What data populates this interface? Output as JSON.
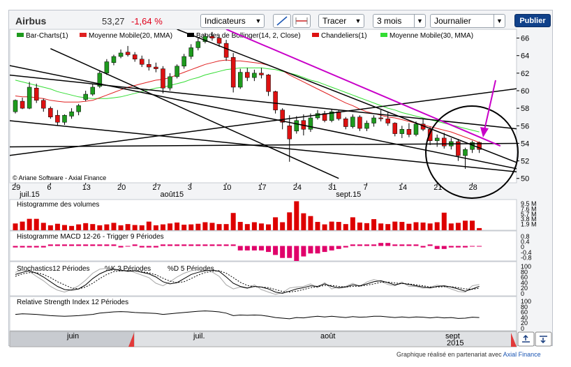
{
  "header": {
    "ticker_name": "Airbus",
    "price": "53,27",
    "change": "-1,64 %",
    "indicators_label": "Indicateurs",
    "draw_label": "Tracer",
    "period_value": "3 mois",
    "interval_value": "Journalier",
    "publish_label": "Publier"
  },
  "footer": {
    "credit": "Graphique réalisé en partenariat avec",
    "partner": "Axial Finance"
  },
  "colors": {
    "up": "#1e9a1e",
    "down": "#dd1111",
    "ma20": "#e02020",
    "ma30": "#33dd33",
    "trend": "#000000",
    "magenta": "#c800c8",
    "volume": "#dd0000",
    "macd": "#e0006a"
  },
  "chart_data": [
    {
      "type": "candlestick",
      "name": "price",
      "legend": [
        "Bar-Charts(1)",
        "Moyenne Mobile(20, MMA)",
        "Bandes de Bollinger(14, 2, Close)",
        "Chandeliers(1)",
        "Moyenne Mobile(30, MMA)"
      ],
      "watermark": "© Ariane Software - Axial Finance",
      "y_ticks": [
        50,
        52,
        54,
        56,
        58,
        60,
        62,
        64,
        66
      ],
      "ylim": [
        49.5,
        67
      ],
      "x_tick_labels": [
        "29",
        "6",
        "13",
        "20",
        "27",
        "3",
        "10",
        "17",
        "24",
        "31",
        "7",
        "14",
        "21",
        "28"
      ],
      "x_tick_index": [
        0,
        5,
        10,
        15,
        20,
        25,
        30,
        35,
        40,
        45,
        50,
        55,
        60,
        65
      ],
      "month_labels": [
        {
          "label": "juil.15",
          "index": 1
        },
        {
          "label": "août15",
          "index": 21
        },
        {
          "label": "sept.15",
          "index": 46
        }
      ],
      "candles": [
        [
          57.6,
          59.0,
          57.4,
          58.9
        ],
        [
          58.8,
          59.2,
          57.9,
          58.0
        ],
        [
          58.0,
          61.0,
          57.9,
          60.4
        ],
        [
          60.3,
          60.8,
          58.6,
          58.9
        ],
        [
          58.9,
          59.1,
          57.6,
          58.0
        ],
        [
          58.0,
          58.2,
          56.8,
          57.0
        ],
        [
          57.2,
          57.8,
          56.0,
          56.4
        ],
        [
          56.4,
          57.3,
          56.1,
          57.2
        ],
        [
          57.1,
          58.0,
          56.8,
          57.6
        ],
        [
          57.6,
          58.5,
          57.2,
          58.3
        ],
        [
          59.0,
          60.0,
          58.8,
          59.6
        ],
        [
          59.6,
          60.8,
          59.4,
          60.4
        ],
        [
          60.5,
          62.3,
          60.3,
          62.0
        ],
        [
          62.0,
          63.6,
          61.8,
          63.3
        ],
        [
          63.2,
          64.1,
          62.9,
          63.9
        ],
        [
          63.9,
          64.7,
          63.7,
          64.3
        ],
        [
          64.4,
          65.1,
          63.9,
          64.1
        ],
        [
          64.1,
          64.4,
          63.3,
          63.6
        ],
        [
          63.6,
          64.0,
          62.7,
          63.0
        ],
        [
          63.0,
          63.6,
          62.3,
          62.7
        ],
        [
          62.7,
          63.2,
          62.1,
          62.5
        ],
        [
          62.5,
          62.8,
          59.7,
          60.3
        ],
        [
          60.3,
          62.0,
          60.0,
          61.6
        ],
        [
          61.6,
          63.0,
          61.4,
          62.8
        ],
        [
          62.8,
          64.2,
          62.5,
          63.9
        ],
        [
          63.9,
          65.3,
          63.6,
          64.9
        ],
        [
          64.9,
          66.0,
          64.6,
          65.6
        ],
        [
          65.6,
          66.6,
          65.4,
          66.2
        ],
        [
          66.2,
          66.7,
          65.7,
          66.0
        ],
        [
          66.0,
          66.4,
          65.0,
          65.4
        ],
        [
          65.4,
          65.8,
          63.4,
          63.8
        ],
        [
          63.8,
          64.3,
          59.8,
          60.4
        ],
        [
          60.4,
          62.5,
          60.2,
          62.1
        ],
        [
          62.1,
          62.6,
          61.1,
          61.5
        ],
        [
          61.5,
          62.4,
          61.1,
          62.0
        ],
        [
          62.0,
          62.6,
          61.4,
          61.8
        ],
        [
          61.8,
          61.9,
          59.4,
          59.9
        ],
        [
          59.9,
          60.0,
          57.4,
          57.8
        ],
        [
          57.8,
          58.0,
          55.6,
          56.4
        ],
        [
          56.0,
          57.2,
          51.9,
          54.5
        ],
        [
          55.4,
          57.1,
          55.1,
          56.6
        ],
        [
          56.6,
          57.3,
          54.9,
          55.6
        ],
        [
          55.6,
          57.4,
          55.3,
          56.9
        ],
        [
          56.9,
          57.8,
          56.7,
          57.4
        ],
        [
          57.4,
          57.7,
          56.4,
          56.6
        ],
        [
          56.6,
          57.9,
          56.4,
          57.6
        ],
        [
          57.6,
          57.8,
          56.6,
          56.8
        ],
        [
          56.8,
          57.0,
          55.6,
          55.9
        ],
        [
          55.9,
          57.3,
          55.7,
          57.0
        ],
        [
          57.0,
          57.2,
          55.4,
          55.7
        ],
        [
          55.7,
          56.6,
          55.4,
          56.3
        ],
        [
          56.3,
          57.2,
          55.9,
          56.9
        ],
        [
          56.9,
          57.8,
          56.5,
          56.8
        ],
        [
          56.8,
          57.6,
          56.0,
          56.3
        ],
        [
          56.3,
          56.4,
          54.8,
          55.1
        ],
        [
          55.1,
          56.0,
          54.6,
          55.6
        ],
        [
          55.6,
          56.3,
          54.7,
          55.0
        ],
        [
          55.0,
          56.5,
          54.8,
          56.2
        ],
        [
          56.2,
          56.8,
          55.4,
          55.6
        ],
        [
          55.6,
          55.9,
          53.8,
          54.3
        ],
        [
          54.3,
          55.0,
          53.6,
          54.6
        ],
        [
          54.6,
          55.2,
          53.4,
          53.7
        ],
        [
          53.7,
          54.6,
          53.3,
          54.2
        ],
        [
          54.2,
          54.5,
          52.0,
          52.6
        ],
        [
          52.6,
          53.5,
          51.1,
          53.3
        ],
        [
          53.3,
          54.3,
          52.9,
          54.1
        ],
        [
          54.1,
          54.2,
          52.9,
          53.3
        ]
      ],
      "ma20": [
        59.4,
        59.3,
        59.3,
        59.2,
        59.1,
        58.9,
        58.8,
        58.7,
        58.7,
        58.7,
        58.8,
        58.9,
        59.2,
        59.5,
        59.8,
        60.1,
        60.4,
        60.6,
        60.8,
        61.0,
        61.2,
        61.3,
        61.5,
        61.8,
        62.1,
        62.4,
        62.7,
        63.0,
        63.2,
        63.4,
        63.5,
        63.4,
        63.4,
        63.3,
        63.2,
        63.1,
        62.9,
        62.6,
        62.3,
        61.8,
        61.4,
        61.0,
        60.6,
        60.2,
        59.8,
        59.4,
        59.0,
        58.6,
        58.3,
        57.9,
        57.6,
        57.4,
        57.2,
        57.0,
        56.9,
        56.7,
        56.5,
        56.3,
        56.1,
        55.9,
        55.7,
        55.5,
        55.3,
        55.0,
        54.7,
        54.4,
        54.1
      ],
      "ma30": [
        61.2,
        61.0,
        60.8,
        60.6,
        60.4,
        60.2,
        59.9,
        59.7,
        59.5,
        59.3,
        59.2,
        59.1,
        59.1,
        59.1,
        59.2,
        59.3,
        59.5,
        59.7,
        59.9,
        60.1,
        60.3,
        60.4,
        60.6,
        60.8,
        61.0,
        61.3,
        61.5,
        61.8,
        62.0,
        62.2,
        62.4,
        62.5,
        62.6,
        62.6,
        62.6,
        62.6,
        62.5,
        62.4,
        62.2,
        62.0,
        61.8,
        61.5,
        61.2,
        61.0,
        60.7,
        60.4,
        60.1,
        59.8,
        59.5,
        59.2,
        58.9,
        58.6,
        58.3,
        58.0,
        57.8,
        57.5,
        57.3,
        57.1,
        56.9,
        56.7,
        56.5,
        56.3,
        56.1,
        55.9,
        55.7,
        55.5,
        55.3
      ],
      "trendlines": [
        {
          "from": [
            -1,
            61.8
          ],
          "to": [
            72,
            55.6
          ],
          "color": "trend"
        },
        {
          "from": [
            -1,
            62.9
          ],
          "to": [
            72,
            51.0
          ],
          "color": "trend"
        },
        {
          "from": [
            -1,
            56.6
          ],
          "to": [
            72,
            50.7
          ],
          "color": "trend"
        },
        {
          "from": [
            -1,
            53.6
          ],
          "to": [
            72,
            54.0
          ],
          "color": "trend"
        },
        {
          "from": [
            -1,
            52.6
          ],
          "to": [
            72,
            60.3
          ],
          "color": "trend"
        },
        {
          "from": [
            5,
            64.8
          ],
          "to": [
            46,
            50.0
          ],
          "color": "trend"
        },
        {
          "from": [
            23,
            67.0
          ],
          "to": [
            72,
            51.6
          ],
          "color": "trend"
        },
        {
          "from": [
            30,
            67.0
          ],
          "to": [
            69,
            53.7
          ],
          "color": "magenta"
        }
      ]
    },
    {
      "type": "bar",
      "name": "volume",
      "title": "Histogramme des volumes",
      "y_ticks": [
        "9.5 M",
        "7.6 M",
        "5.7 M",
        "3.8 M",
        "1.9 M"
      ],
      "ylim": [
        0,
        9.5
      ],
      "values": [
        2.2,
        2.8,
        3.7,
        3.7,
        2.4,
        1.6,
        2.1,
        1.7,
        1.4,
        1.9,
        2.3,
        2.0,
        1.6,
        1.9,
        2.4,
        1.6,
        2.0,
        1.7,
        1.6,
        2.8,
        1.6,
        1.9,
        2.2,
        2.5,
        1.8,
        1.9,
        2.1,
        2.6,
        2.4,
        2.0,
        2.0,
        5.6,
        2.7,
        2.0,
        2.6,
        2.2,
        1.9,
        4.2,
        2.6,
        5.8,
        9.4,
        5.5,
        4.6,
        2.7,
        1.9,
        2.8,
        2.7,
        2.0,
        4.2,
        2.5,
        2.3,
        3.6,
        2.2,
        2.0,
        2.8,
        2.7,
        2.1,
        2.6,
        2.5,
        2.2,
        2.6,
        5.7,
        2.2,
        2.4,
        3.1,
        3.1,
        0.7
      ]
    },
    {
      "type": "bar",
      "name": "macd",
      "title": "Histogramme MACD 12-26 - Trigger 9 Périodes",
      "y_ticks": [
        "0.8",
        "0.4",
        "0",
        "-0.4",
        "-0.8"
      ],
      "ylim": [
        -1.0,
        1.0
      ],
      "values": [
        -0.1,
        -0.1,
        -0.1,
        -0.1,
        -0.1,
        0.1,
        0.1,
        0.1,
        0.1,
        0.1,
        0.1,
        0.1,
        0.1,
        0.1,
        0.1,
        -0.1,
        0.0,
        0.1,
        -0.1,
        -0.1,
        -0.1,
        0.1,
        0.1,
        0.1,
        0.1,
        0.1,
        0.1,
        0.1,
        0.1,
        0.1,
        0.1,
        0.1,
        -0.3,
        -0.3,
        -0.3,
        -0.3,
        -0.4,
        -0.6,
        -0.8,
        -0.8,
        -1.0,
        -0.7,
        -0.5,
        -0.5,
        -0.4,
        -0.3,
        -0.2,
        -0.1,
        0.1,
        0.1,
        0.1,
        0.1,
        0.2,
        0.2,
        0.1,
        0.1,
        0.1,
        0.1,
        -0.1,
        0.1,
        -0.2,
        -0.2,
        -0.1,
        -0.1,
        -0.1,
        0.0,
        0.0
      ]
    },
    {
      "type": "line",
      "name": "stochastics",
      "title": "Stochastics12 Périodes",
      "legend": [
        "%K 3 Périodes",
        "%D 5 Périodes"
      ],
      "y_ticks": [
        100,
        80,
        60,
        40,
        20,
        0
      ],
      "ylim": [
        0,
        100
      ],
      "k": [
        68,
        75,
        80,
        72,
        60,
        45,
        30,
        20,
        18,
        22,
        35,
        55,
        70,
        80,
        85,
        82,
        78,
        80,
        75,
        70,
        60,
        45,
        38,
        42,
        55,
        68,
        75,
        80,
        82,
        78,
        60,
        40,
        30,
        25,
        30,
        28,
        22,
        12,
        8,
        15,
        22,
        26,
        32,
        30,
        38,
        30,
        25,
        28,
        35,
        32,
        38,
        45,
        48,
        42,
        35,
        40,
        36,
        32,
        28,
        25,
        30,
        32,
        28,
        22,
        15,
        22,
        30
      ],
      "d": [
        62,
        70,
        74,
        74,
        68,
        58,
        45,
        35,
        25,
        22,
        28,
        40,
        55,
        68,
        77,
        80,
        80,
        79,
        77,
        73,
        67,
        56,
        47,
        42,
        45,
        55,
        66,
        74,
        78,
        80,
        72,
        58,
        43,
        33,
        29,
        28,
        26,
        20,
        14,
        12,
        15,
        20,
        26,
        29,
        33,
        33,
        30,
        28,
        30,
        31,
        34,
        38,
        43,
        44,
        41,
        39,
        38,
        35,
        32,
        28,
        28,
        29,
        29,
        26,
        22,
        21,
        24
      ],
      "raw": [
        75,
        82,
        78,
        62,
        48,
        30,
        18,
        12,
        20,
        32,
        50,
        72,
        85,
        88,
        84,
        78,
        82,
        74,
        66,
        58,
        40,
        32,
        45,
        60,
        72,
        80,
        84,
        86,
        76,
        62,
        35,
        22,
        28,
        24,
        35,
        20,
        12,
        5,
        10,
        25,
        28,
        30,
        38,
        26,
        42,
        22,
        28,
        30,
        40,
        30,
        44,
        52,
        46,
        36,
        32,
        44,
        30,
        30,
        24,
        28,
        34,
        30,
        22,
        14,
        12,
        32,
        36
      ]
    },
    {
      "type": "line",
      "name": "rsi",
      "title": "Relative Strength Index 12 Périodes",
      "y_ticks": [
        100,
        80,
        60,
        40,
        20,
        0
      ],
      "ylim": [
        0,
        100
      ],
      "values": [
        52,
        54,
        53,
        52,
        50,
        48,
        47,
        46,
        47,
        48,
        50,
        52,
        56,
        58,
        60,
        61,
        60,
        58,
        57,
        56,
        55,
        52,
        54,
        56,
        58,
        60,
        62,
        63,
        62,
        60,
        56,
        48,
        50,
        49,
        50,
        49,
        46,
        42,
        40,
        38,
        42,
        41,
        44,
        46,
        44,
        46,
        44,
        42,
        45,
        43,
        44,
        46,
        46,
        44,
        42,
        44,
        42,
        44,
        43,
        41,
        43,
        41,
        42,
        39,
        40,
        43,
        42
      ]
    },
    {
      "type": "navigator",
      "name": "navigator",
      "month_labels": [
        "juin",
        "juil.",
        "août",
        "sept",
        "2015"
      ]
    }
  ]
}
